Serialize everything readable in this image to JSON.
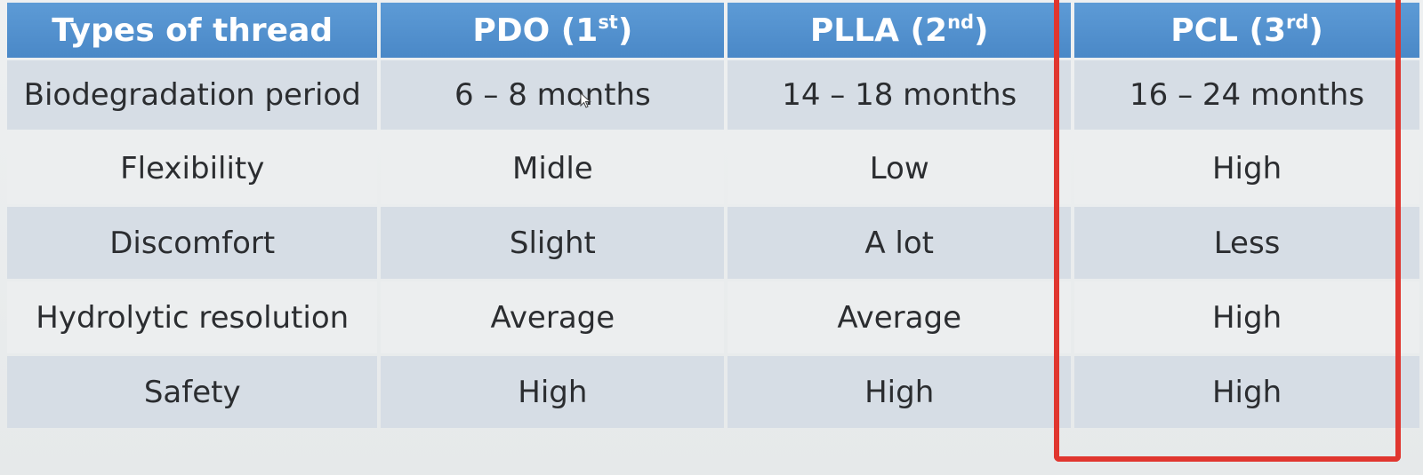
{
  "table": {
    "headers": [
      {
        "main": "Types of thread",
        "sup": "",
        "tail": ""
      },
      {
        "main": "PDO (1",
        "sup": "st",
        "tail": ")"
      },
      {
        "main": "PLLA (2",
        "sup": "nd",
        "tail": ")"
      },
      {
        "main": "PCL (3",
        "sup": "rd",
        "tail": ")"
      }
    ],
    "rows": [
      [
        "Biodegradation period",
        "6 – 8 months",
        "14 – 18 months",
        "16 – 24 months"
      ],
      [
        "Flexibility",
        "Midle",
        "Low",
        "High"
      ],
      [
        "Discomfort",
        "Slight",
        "A lot",
        "Less"
      ],
      [
        "Hydrolytic resolution",
        "Average",
        "Average",
        "High"
      ],
      [
        "Safety",
        "High",
        "High",
        "High"
      ]
    ]
  },
  "colors": {
    "header_bg": "#4f8fcc",
    "header_text": "#ffffff",
    "band_a": "#d6dde5",
    "band_b": "#eceeef",
    "highlight_border": "#e0362f"
  },
  "highlight": {
    "column_index": 3
  },
  "cursor": {
    "icon": "mouse-pointer-icon"
  }
}
